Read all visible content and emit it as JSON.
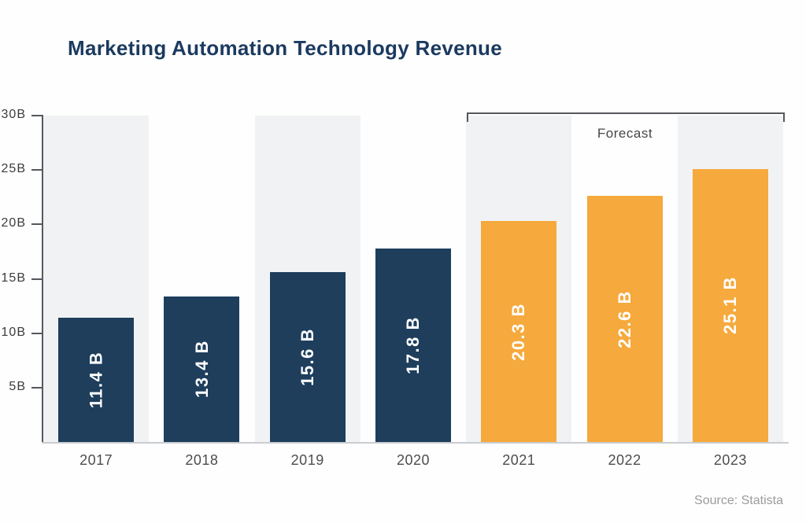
{
  "title": "Marketing Automation Technology Revenue",
  "source": "Source: Statista",
  "forecast": {
    "label": "Forecast"
  },
  "chart_data": {
    "type": "bar",
    "title": "Marketing Automation Technology Revenue",
    "categories": [
      "2017",
      "2018",
      "2019",
      "2020",
      "2021",
      "2022",
      "2023"
    ],
    "values": [
      11.4,
      13.4,
      15.6,
      17.8,
      20.3,
      22.6,
      25.1
    ],
    "bar_labels": [
      "11.4 B",
      "13.4 B",
      "15.6 B",
      "17.8 B",
      "20.3 B",
      "22.6 B",
      "25.1 B"
    ],
    "unit": "B",
    "ylim": [
      0,
      30
    ],
    "y_ticks": [
      5,
      10,
      15,
      20,
      25,
      30
    ],
    "y_tick_labels": [
      "5B",
      "10B",
      "15B",
      "20B",
      "25B",
      "30B"
    ],
    "forecast_start_index": 4,
    "annotation": "Forecast",
    "grid": "off",
    "legend_position": "none",
    "colors": {
      "actual_bar": "#1E3E5C",
      "forecast_bar": "#F6A93C",
      "column_band": "#F1F2F4",
      "bar_label_text": "#FFFFFF",
      "title_text": "#1B3A60",
      "axis_line": "#55585C",
      "source_text": "#9B9B9B"
    }
  }
}
